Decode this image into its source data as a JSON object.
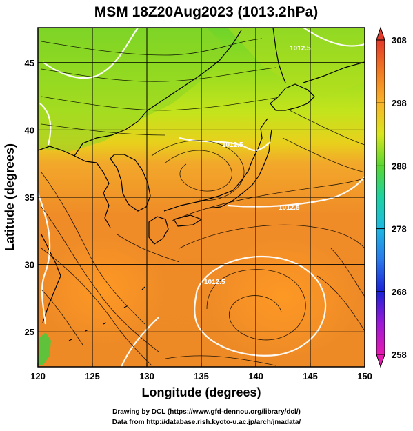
{
  "title": "MSM 18Z20Aug2023 (1013.2hPa)",
  "map": {
    "xlabel": "Longitude (degrees)",
    "ylabel": "Latitude  (degrees)",
    "lon_range": [
      120,
      150
    ],
    "lat_range": [
      22.4,
      47.6
    ],
    "lon_ticks": [
      "120",
      "125",
      "130",
      "135",
      "140",
      "145",
      "150"
    ],
    "lat_ticks": [
      "25",
      "30",
      "35",
      "40",
      "45"
    ],
    "grid_lon": [
      125,
      130,
      135,
      140,
      145
    ],
    "grid_lat": [
      25,
      30,
      35,
      40,
      45
    ],
    "contour_labels": [
      "1012.5",
      "1012.5",
      "1012.5",
      "1012.5"
    ]
  },
  "colorbar": {
    "labels": [
      "308",
      "298",
      "288",
      "278",
      "268",
      "258"
    ],
    "min": 258,
    "max": 308
  },
  "footer": {
    "line1": "Drawing by DCL (https://www.gfd-dennou.org/library/dcl/)",
    "line2": "Data from http://database.rish.kyoto-u.ac.jp/arch/jmadata/"
  }
}
